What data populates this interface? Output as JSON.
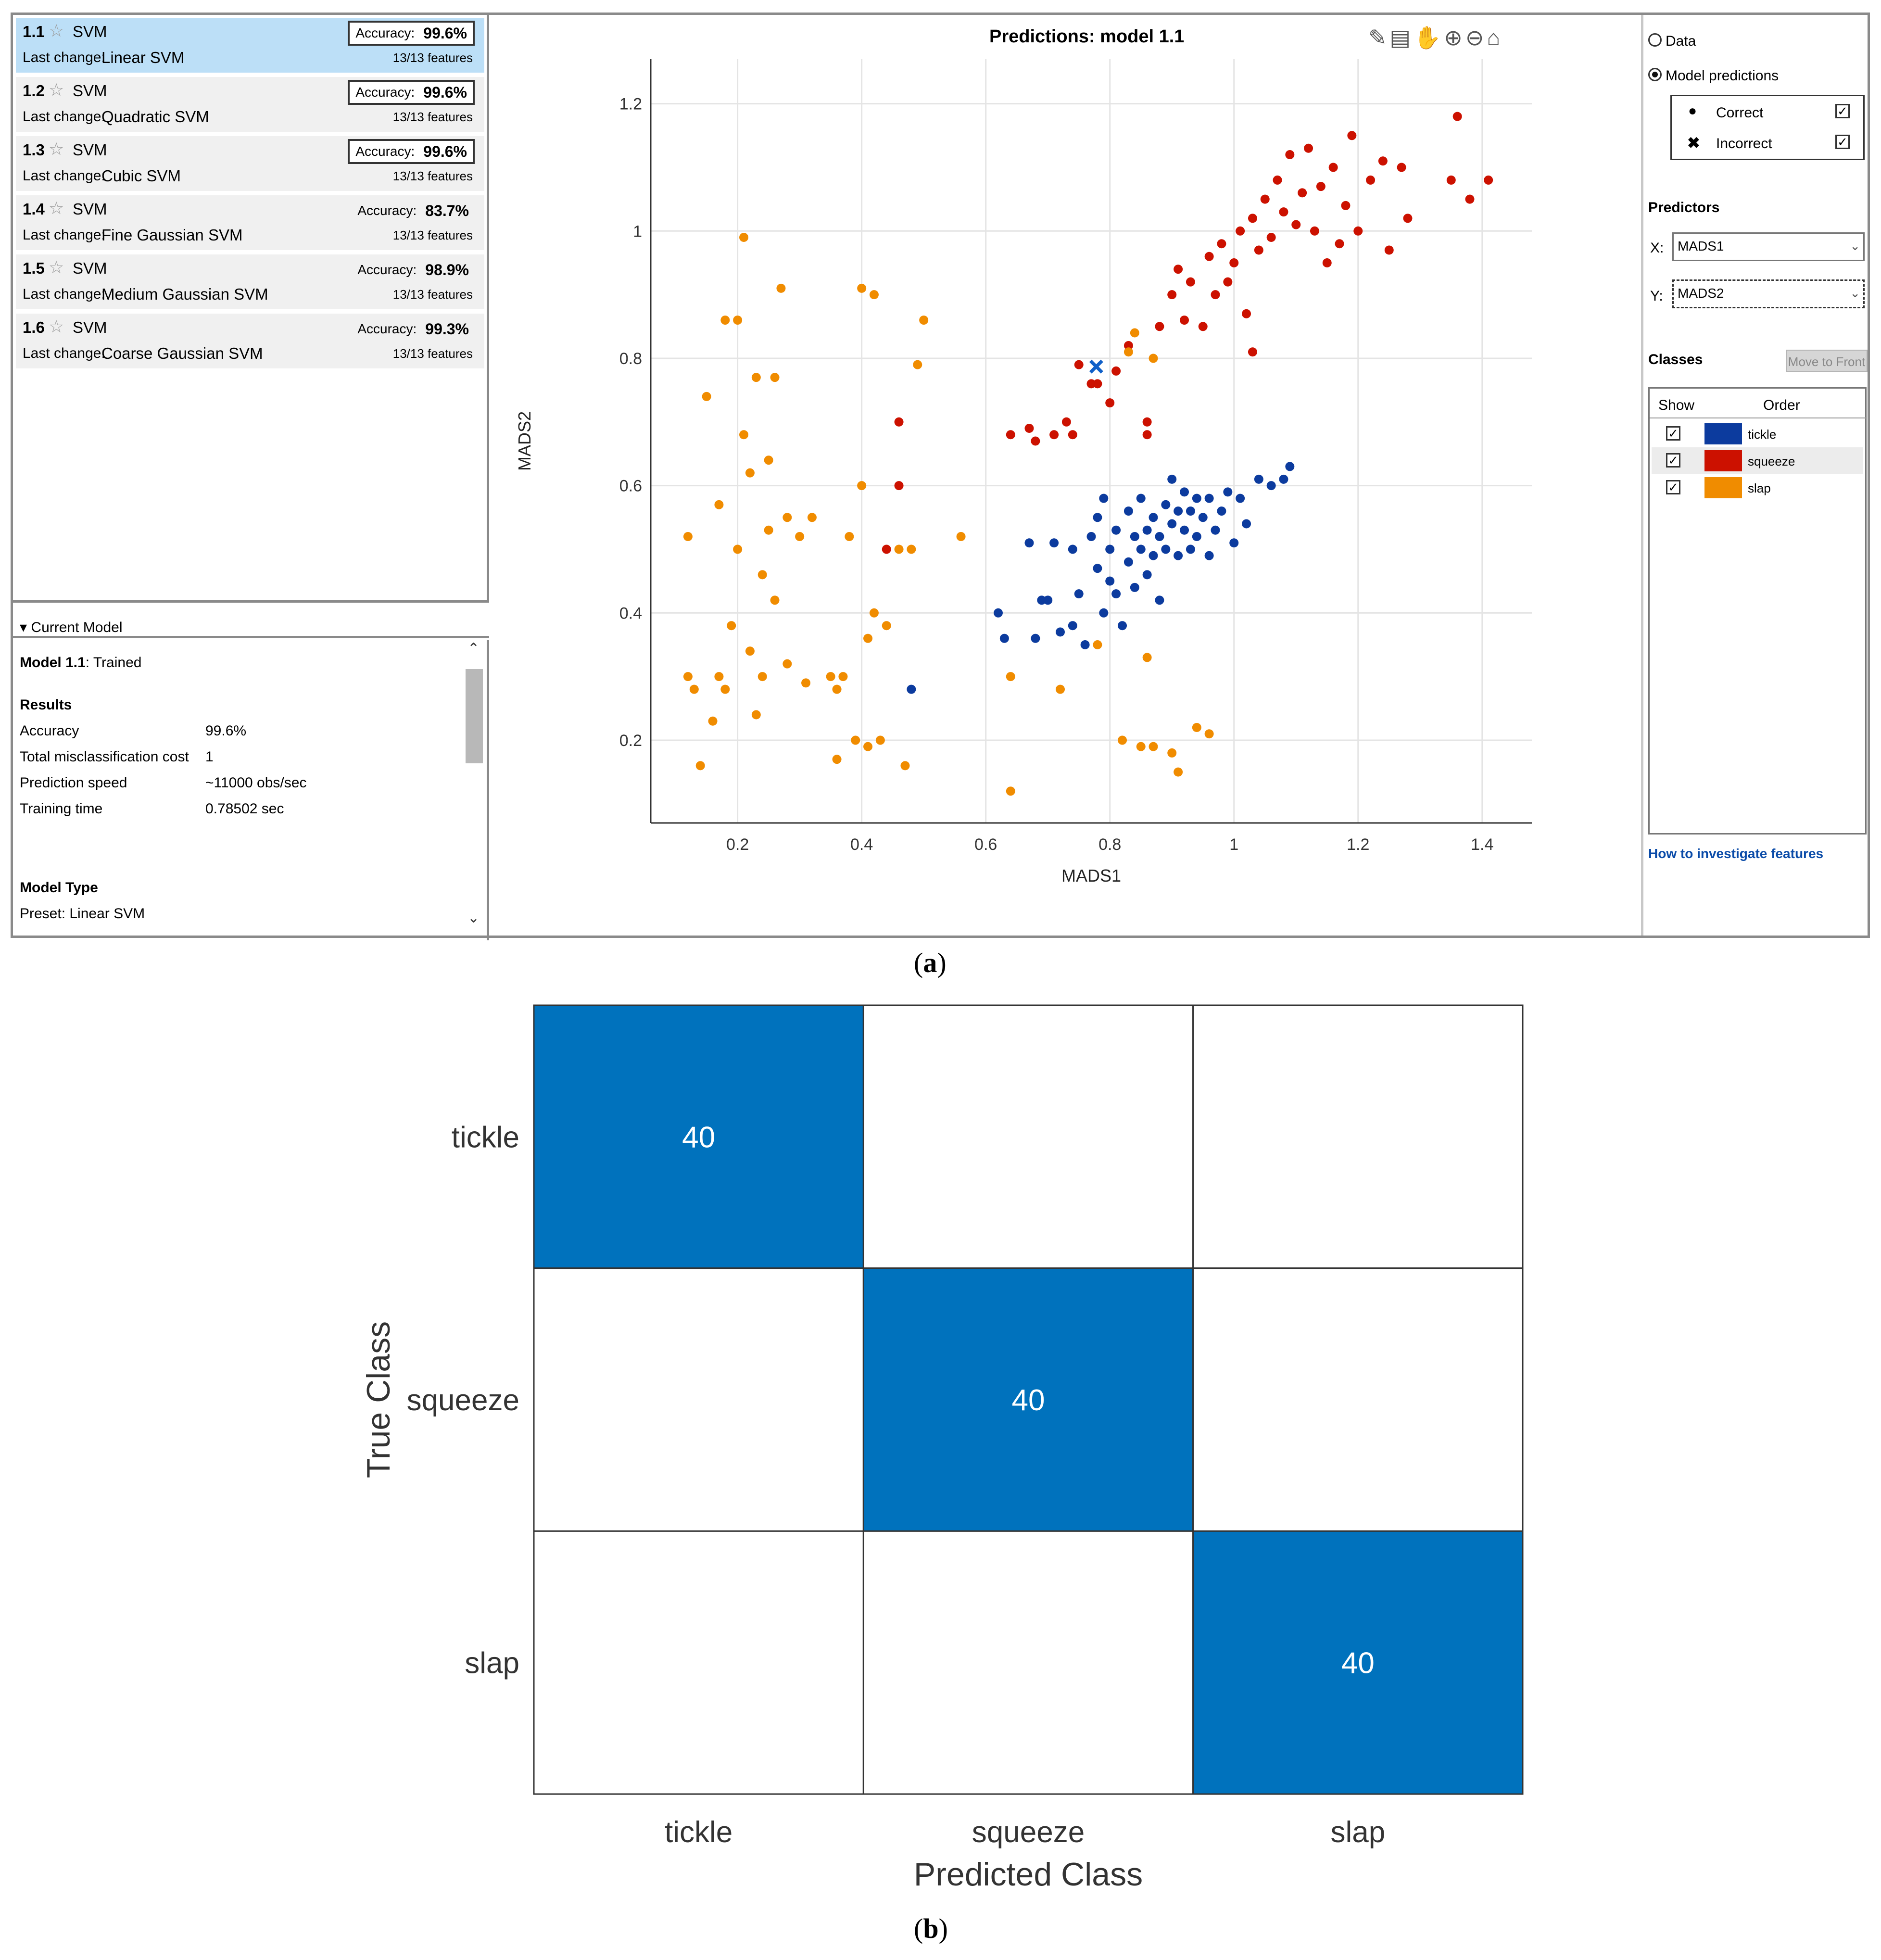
{
  "models": [
    {
      "id": "1.1",
      "type": "SVM",
      "last_change_label": "Last change:",
      "last_change": "Linear SVM",
      "accuracy_label": "Accuracy:",
      "accuracy": "99.6%",
      "features": "13/13 features",
      "selected": true,
      "boxed": true
    },
    {
      "id": "1.2",
      "type": "SVM",
      "last_change_label": "Last change:",
      "last_change": "Quadratic SVM",
      "accuracy_label": "Accuracy:",
      "accuracy": "99.6%",
      "features": "13/13 features",
      "selected": false,
      "boxed": true
    },
    {
      "id": "1.3",
      "type": "SVM",
      "last_change_label": "Last change:",
      "last_change": "Cubic SVM",
      "accuracy_label": "Accuracy:",
      "accuracy": "99.6%",
      "features": "13/13 features",
      "selected": false,
      "boxed": true
    },
    {
      "id": "1.4",
      "type": "SVM",
      "last_change_label": "Last change:",
      "last_change": "Fine Gaussian SVM",
      "accuracy_label": "Accuracy:",
      "accuracy": "83.7%",
      "features": "13/13 features",
      "selected": false,
      "boxed": false
    },
    {
      "id": "1.5",
      "type": "SVM",
      "last_change_label": "Last change:",
      "last_change": "Medium Gaussian SVM",
      "accuracy_label": "Accuracy:",
      "accuracy": "98.9%",
      "features": "13/13 features",
      "selected": false,
      "boxed": false
    },
    {
      "id": "1.6",
      "type": "SVM",
      "last_change_label": "Last change:",
      "last_change": "Coarse Gaussian SVM",
      "accuracy_label": "Accuracy:",
      "accuracy": "99.3%",
      "features": "13/13 features",
      "selected": false,
      "boxed": false
    }
  ],
  "current_model": {
    "header": "Current Model",
    "model_id": "Model 1.1",
    "status": ": Trained",
    "results_title": "Results",
    "accuracy_label": "Accuracy",
    "accuracy": "99.6%",
    "cost_label": "Total misclassification cost",
    "cost": "1",
    "speed_label": "Prediction speed",
    "speed": "~11000 obs/sec",
    "time_label": "Training time",
    "time": "0.78502 sec",
    "type_title": "Model Type",
    "preset": "Preset: Linear SVM"
  },
  "right_panel": {
    "data_label": "Data",
    "predictions_label": "Model predictions",
    "correct_label": "Correct",
    "incorrect_label": "Incorrect",
    "predictors_title": "Predictors",
    "x_label": "X:",
    "x_value": "MADS1",
    "y_label": "Y:",
    "y_value": "MADS2",
    "classes_title": "Classes",
    "move_front": "Move to Front",
    "show_header": "Show",
    "order_header": "Order",
    "classes": [
      {
        "name": "tickle",
        "color": "#0c3b9e"
      },
      {
        "name": "squeeze",
        "color": "#cc1100"
      },
      {
        "name": "slap",
        "color": "#f08c00"
      }
    ],
    "link": "How to investigate features"
  },
  "chart_data": [
    {
      "type": "scatter",
      "title": "Predictions: model 1.1",
      "xlabel": "MADS1",
      "ylabel": "MADS2",
      "xlim": [
        0.06,
        1.48
      ],
      "ylim": [
        0.07,
        1.27
      ],
      "xticks": [
        0.2,
        0.4,
        0.6,
        0.8,
        1,
        1.2,
        1.4
      ],
      "yticks": [
        0.2,
        0.4,
        0.6,
        0.8,
        1,
        1.2
      ],
      "grid": true,
      "series": [
        {
          "name": "tickle",
          "color": "#0c3b9e",
          "points": [
            [
              0.62,
              0.4
            ],
            [
              0.63,
              0.36
            ],
            [
              0.67,
              0.51
            ],
            [
              0.68,
              0.36
            ],
            [
              0.69,
              0.42
            ],
            [
              0.7,
              0.42
            ],
            [
              0.71,
              0.51
            ],
            [
              0.72,
              0.37
            ],
            [
              0.74,
              0.38
            ],
            [
              0.74,
              0.5
            ],
            [
              0.75,
              0.43
            ],
            [
              0.76,
              0.35
            ],
            [
              0.77,
              0.52
            ],
            [
              0.78,
              0.47
            ],
            [
              0.78,
              0.55
            ],
            [
              0.79,
              0.4
            ],
            [
              0.79,
              0.58
            ],
            [
              0.8,
              0.45
            ],
            [
              0.8,
              0.5
            ],
            [
              0.81,
              0.53
            ],
            [
              0.81,
              0.43
            ],
            [
              0.82,
              0.38
            ],
            [
              0.83,
              0.48
            ],
            [
              0.83,
              0.56
            ],
            [
              0.84,
              0.44
            ],
            [
              0.84,
              0.52
            ],
            [
              0.85,
              0.5
            ],
            [
              0.85,
              0.58
            ],
            [
              0.86,
              0.46
            ],
            [
              0.86,
              0.53
            ],
            [
              0.87,
              0.49
            ],
            [
              0.87,
              0.55
            ],
            [
              0.88,
              0.52
            ],
            [
              0.88,
              0.42
            ],
            [
              0.89,
              0.57
            ],
            [
              0.89,
              0.5
            ],
            [
              0.9,
              0.54
            ],
            [
              0.9,
              0.61
            ],
            [
              0.91,
              0.49
            ],
            [
              0.91,
              0.56
            ],
            [
              0.92,
              0.53
            ],
            [
              0.92,
              0.59
            ],
            [
              0.93,
              0.5
            ],
            [
              0.93,
              0.56
            ],
            [
              0.94,
              0.58
            ],
            [
              0.94,
              0.52
            ],
            [
              0.95,
              0.55
            ],
            [
              0.96,
              0.49
            ],
            [
              0.96,
              0.58
            ],
            [
              0.97,
              0.53
            ],
            [
              0.98,
              0.56
            ],
            [
              0.99,
              0.59
            ],
            [
              1.0,
              0.51
            ],
            [
              1.01,
              0.58
            ],
            [
              1.02,
              0.54
            ],
            [
              1.04,
              0.61
            ],
            [
              1.06,
              0.6
            ],
            [
              1.08,
              0.61
            ],
            [
              1.09,
              0.63
            ],
            [
              0.48,
              0.28
            ]
          ]
        },
        {
          "name": "squeeze",
          "color": "#cc1100",
          "points": [
            [
              0.64,
              0.68
            ],
            [
              0.67,
              0.69
            ],
            [
              0.68,
              0.67
            ],
            [
              0.71,
              0.68
            ],
            [
              0.73,
              0.7
            ],
            [
              0.74,
              0.68
            ],
            [
              0.75,
              0.79
            ],
            [
              0.77,
              0.76
            ],
            [
              0.78,
              0.76
            ],
            [
              0.8,
              0.73
            ],
            [
              0.81,
              0.78
            ],
            [
              0.83,
              0.82
            ],
            [
              0.86,
              0.7
            ],
            [
              0.86,
              0.68
            ],
            [
              0.88,
              0.85
            ],
            [
              0.9,
              0.9
            ],
            [
              0.91,
              0.94
            ],
            [
              0.92,
              0.86
            ],
            [
              0.93,
              0.92
            ],
            [
              0.95,
              0.85
            ],
            [
              0.96,
              0.96
            ],
            [
              0.97,
              0.9
            ],
            [
              0.98,
              0.98
            ],
            [
              0.99,
              0.92
            ],
            [
              1.0,
              0.95
            ],
            [
              1.01,
              1.0
            ],
            [
              1.02,
              0.87
            ],
            [
              1.03,
              1.02
            ],
            [
              1.04,
              0.97
            ],
            [
              1.05,
              1.05
            ],
            [
              1.06,
              0.99
            ],
            [
              1.07,
              1.08
            ],
            [
              1.08,
              1.03
            ],
            [
              1.09,
              1.12
            ],
            [
              1.1,
              1.01
            ],
            [
              1.11,
              1.06
            ],
            [
              1.12,
              1.13
            ],
            [
              1.13,
              1.0
            ],
            [
              1.14,
              1.07
            ],
            [
              1.15,
              0.95
            ],
            [
              1.16,
              1.1
            ],
            [
              1.17,
              0.98
            ],
            [
              1.18,
              1.04
            ],
            [
              1.19,
              1.15
            ],
            [
              1.2,
              1.0
            ],
            [
              1.22,
              1.08
            ],
            [
              1.24,
              1.11
            ],
            [
              1.25,
              0.97
            ],
            [
              1.27,
              1.1
            ],
            [
              1.28,
              1.02
            ],
            [
              1.35,
              1.08
            ],
            [
              1.36,
              1.18
            ],
            [
              1.38,
              1.05
            ],
            [
              1.41,
              1.08
            ],
            [
              1.03,
              0.81
            ],
            [
              0.44,
              0.5
            ],
            [
              0.46,
              0.7
            ],
            [
              0.46,
              0.6
            ]
          ]
        },
        {
          "name": "slap",
          "color": "#f08c00",
          "points": [
            [
              0.12,
              0.52
            ],
            [
              0.12,
              0.3
            ],
            [
              0.13,
              0.28
            ],
            [
              0.14,
              0.16
            ],
            [
              0.15,
              0.74
            ],
            [
              0.16,
              0.23
            ],
            [
              0.17,
              0.3
            ],
            [
              0.17,
              0.57
            ],
            [
              0.18,
              0.86
            ],
            [
              0.18,
              0.28
            ],
            [
              0.19,
              0.38
            ],
            [
              0.2,
              0.86
            ],
            [
              0.2,
              0.5
            ],
            [
              0.21,
              0.99
            ],
            [
              0.21,
              0.68
            ],
            [
              0.22,
              0.62
            ],
            [
              0.22,
              0.34
            ],
            [
              0.23,
              0.77
            ],
            [
              0.23,
              0.24
            ],
            [
              0.24,
              0.46
            ],
            [
              0.24,
              0.3
            ],
            [
              0.25,
              0.64
            ],
            [
              0.25,
              0.53
            ],
            [
              0.26,
              0.77
            ],
            [
              0.26,
              0.42
            ],
            [
              0.27,
              0.91
            ],
            [
              0.28,
              0.32
            ],
            [
              0.28,
              0.55
            ],
            [
              0.3,
              0.52
            ],
            [
              0.31,
              0.29
            ],
            [
              0.32,
              0.55
            ],
            [
              0.35,
              0.3
            ],
            [
              0.36,
              0.17
            ],
            [
              0.36,
              0.28
            ],
            [
              0.37,
              0.3
            ],
            [
              0.38,
              0.52
            ],
            [
              0.39,
              0.2
            ],
            [
              0.4,
              0.91
            ],
            [
              0.4,
              0.6
            ],
            [
              0.41,
              0.36
            ],
            [
              0.41,
              0.19
            ],
            [
              0.42,
              0.4
            ],
            [
              0.42,
              0.9
            ],
            [
              0.43,
              0.2
            ],
            [
              0.44,
              0.38
            ],
            [
              0.46,
              0.5
            ],
            [
              0.47,
              0.16
            ],
            [
              0.48,
              0.5
            ],
            [
              0.49,
              0.79
            ],
            [
              0.5,
              0.86
            ],
            [
              0.56,
              0.52
            ],
            [
              0.64,
              0.3
            ],
            [
              0.64,
              0.12
            ],
            [
              0.72,
              0.28
            ],
            [
              0.78,
              0.35
            ],
            [
              0.82,
              0.2
            ],
            [
              0.83,
              0.81
            ],
            [
              0.84,
              0.84
            ],
            [
              0.85,
              0.19
            ],
            [
              0.86,
              0.33
            ],
            [
              0.87,
              0.19
            ],
            [
              0.87,
              0.8
            ],
            [
              0.9,
              0.18
            ],
            [
              0.91,
              0.15
            ],
            [
              0.94,
              0.22
            ],
            [
              0.96,
              0.21
            ]
          ]
        }
      ],
      "incorrect": [
        {
          "x": 0.778,
          "y": 0.787,
          "color": "#1060c8"
        }
      ]
    },
    {
      "type": "heatmap",
      "title": "",
      "xlabel": "Predicted Class",
      "ylabel": "True Class",
      "categories": [
        "tickle",
        "squeeze",
        "slap"
      ],
      "matrix": [
        [
          40,
          0,
          0
        ],
        [
          0,
          40,
          0
        ],
        [
          0,
          0,
          40
        ]
      ],
      "color": "#0072bd"
    }
  ],
  "captions": {
    "a": "(a)",
    "b": "(b)",
    "a_letter": "a",
    "b_letter": "b"
  }
}
